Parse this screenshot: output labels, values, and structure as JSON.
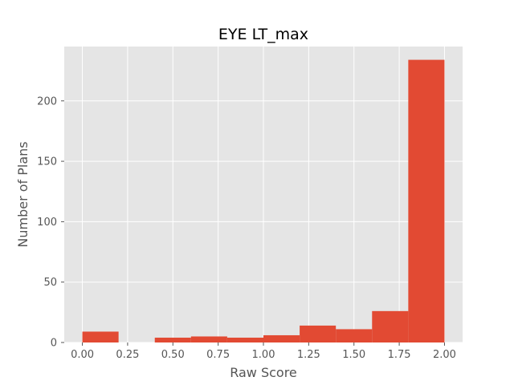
{
  "chart_data": {
    "type": "bar",
    "subtype": "histogram",
    "title": "EYE LT_max",
    "xlabel": "Raw Score",
    "ylabel": "Number of Plans",
    "bins": [
      {
        "start": 0.0,
        "end": 0.2,
        "count": 9
      },
      {
        "start": 0.2,
        "end": 0.4,
        "count": 0
      },
      {
        "start": 0.4,
        "end": 0.6,
        "count": 4
      },
      {
        "start": 0.6,
        "end": 0.8,
        "count": 5
      },
      {
        "start": 0.8,
        "end": 1.0,
        "count": 4
      },
      {
        "start": 1.0,
        "end": 1.2,
        "count": 6
      },
      {
        "start": 1.2,
        "end": 1.4,
        "count": 14
      },
      {
        "start": 1.4,
        "end": 1.6,
        "count": 11
      },
      {
        "start": 1.6,
        "end": 1.8,
        "count": 26
      },
      {
        "start": 1.8,
        "end": 2.0,
        "count": 234
      }
    ],
    "xlim": [
      -0.1,
      2.1
    ],
    "ylim": [
      0,
      245
    ],
    "xticks": [
      0.0,
      0.25,
      0.5,
      0.75,
      1.0,
      1.25,
      1.5,
      1.75,
      2.0
    ],
    "xtick_labels": [
      "0.00",
      "0.25",
      "0.50",
      "0.75",
      "1.00",
      "1.25",
      "1.50",
      "1.75",
      "2.00"
    ],
    "yticks": [
      0,
      50,
      100,
      150,
      200
    ],
    "ytick_labels": [
      "0",
      "50",
      "100",
      "150",
      "200"
    ],
    "grid": true,
    "style": "ggplot",
    "colors": {
      "bar": "#e24a33",
      "plot_background": "#e5e5e5",
      "grid": "#ffffff",
      "tick_text": "#555555",
      "title_text": "#000000"
    }
  }
}
